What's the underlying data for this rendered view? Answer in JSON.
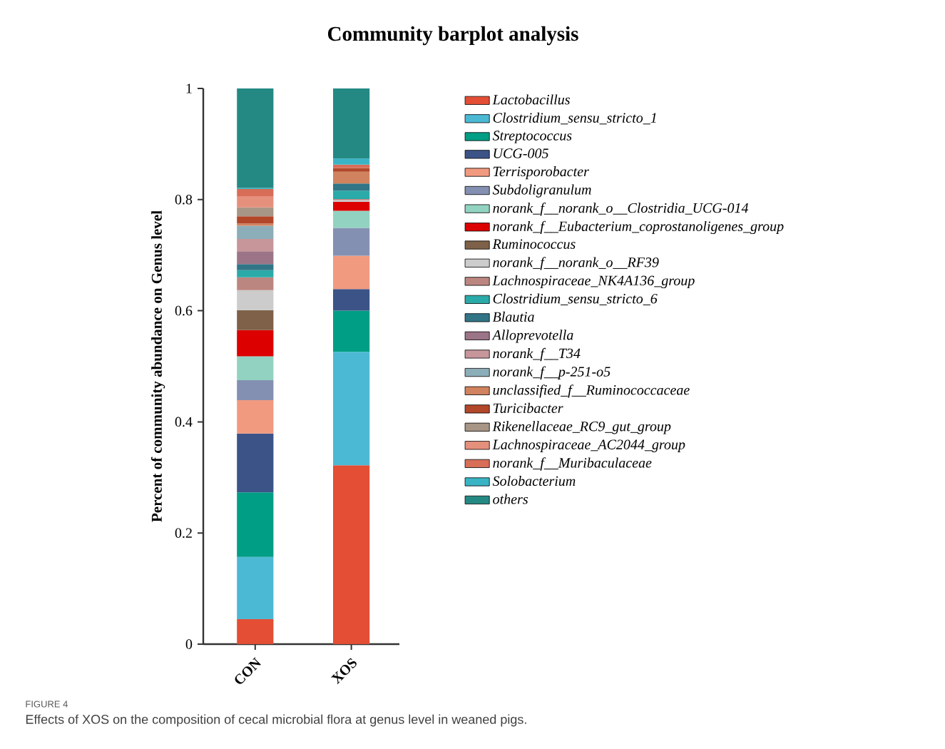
{
  "chart_data": {
    "type": "bar",
    "stacked": true,
    "title": "Community barplot analysis",
    "ylabel": "Percent of community abundance on Genus level",
    "categories": [
      "CON",
      "XOS"
    ],
    "ylim": [
      0,
      1
    ],
    "yticks": [
      0,
      0.2,
      0.4,
      0.6,
      0.8,
      1
    ],
    "legend": "right",
    "annotations": [
      "FIGURE 4",
      "Effects of XOS on the composition of cecal microbial flora at genus level in weaned pigs."
    ],
    "series": [
      {
        "name": "Lactobacillus",
        "color": "#e34e34",
        "values": [
          0.045,
          0.322
        ]
      },
      {
        "name": "Clostridium_sensu_stricto_1",
        "color": "#4cb9d4",
        "values": [
          0.112,
          0.204
        ]
      },
      {
        "name": "Streptococcus",
        "color": "#009e85",
        "values": [
          0.116,
          0.074
        ]
      },
      {
        "name": "UCG-005",
        "color": "#3b5387",
        "values": [
          0.106,
          0.039
        ]
      },
      {
        "name": "Terrisporobacter",
        "color": "#f19a7f",
        "values": [
          0.06,
          0.06
        ]
      },
      {
        "name": "Subdoligranulum",
        "color": "#8490b2",
        "values": [
          0.036,
          0.05
        ]
      },
      {
        "name": "norank_f__norank_o__Clostridia_UCG-014",
        "color": "#92d2c1",
        "values": [
          0.043,
          0.031
        ]
      },
      {
        "name": "norank_f__Eubacterium_coprostanoligenes_group",
        "color": "#dc0000",
        "values": [
          0.047,
          0.016
        ]
      },
      {
        "name": "Ruminococcus",
        "color": "#7e6148",
        "values": [
          0.036,
          null
        ]
      },
      {
        "name": "norank_f__norank_o__RF39",
        "color": "#cccccc",
        "values": [
          0.036,
          0.003
        ]
      },
      {
        "name": "Lachnospiraceae_NK4A136_group",
        "color": "#bc8680",
        "values": [
          0.023,
          0.002
        ]
      },
      {
        "name": "Clostridium_sensu_stricto_6",
        "color": "#2aaaa8",
        "values": [
          0.013,
          0.015
        ]
      },
      {
        "name": "Blautia",
        "color": "#317587",
        "values": [
          0.011,
          0.013
        ]
      },
      {
        "name": "Alloprevotella",
        "color": "#9b7487",
        "values": [
          0.023,
          null
        ]
      },
      {
        "name": "norank_f__T34",
        "color": "#c6969a",
        "values": [
          0.022,
          null
        ]
      },
      {
        "name": "norank_f__p-251-o5",
        "color": "#8caeb9",
        "values": [
          0.024,
          null
        ]
      },
      {
        "name": "unclassified_f__Ruminococcaceae",
        "color": "#d0835e",
        "values": [
          0.004,
          0.021
        ]
      },
      {
        "name": "Turicibacter",
        "color": "#b2472a",
        "values": [
          0.013,
          0.007
        ]
      },
      {
        "name": "Rikenellaceae_RC9_gut_group",
        "color": "#a79585",
        "values": [
          0.016,
          null
        ]
      },
      {
        "name": "Lachnospiraceae_AC2044_group",
        "color": "#e5907c",
        "values": [
          0.02,
          null
        ]
      },
      {
        "name": "norank_f__Muribaculaceae",
        "color": "#d86d58",
        "values": [
          0.013,
          0.006
        ]
      },
      {
        "name": "Solobacterium",
        "color": "#3ab4c5",
        "values": [
          0.002,
          0.011
        ]
      },
      {
        "name": "others",
        "color": "#258983",
        "values": [
          0.179,
          0.126
        ]
      }
    ]
  }
}
